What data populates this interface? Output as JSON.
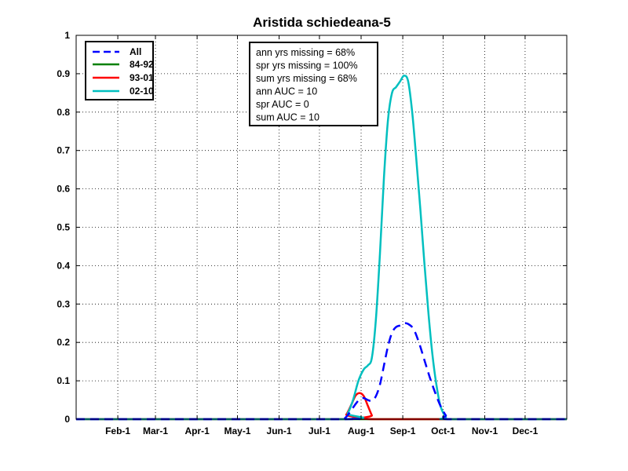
{
  "chart_data": {
    "type": "line",
    "title": "Aristida schiedeana-5",
    "xlabel": "",
    "ylabel": "",
    "xlim": [
      0,
      365
    ],
    "ylim": [
      0,
      1
    ],
    "grid": true,
    "legend_position": "top-left",
    "xticks": {
      "values": [
        31,
        59,
        90,
        120,
        151,
        181,
        212,
        243,
        273,
        304,
        334
      ],
      "labels": [
        "Feb-1",
        "Mar-1",
        "Apr-1",
        "May-1",
        "Jun-1",
        "Jul-1",
        "Aug-1",
        "Sep-1",
        "Oct-1",
        "Nov-1",
        "Dec-1"
      ]
    },
    "yticks": {
      "values": [
        0,
        0.1,
        0.2,
        0.3,
        0.4,
        0.5,
        0.6,
        0.7,
        0.8,
        0.9,
        1
      ],
      "labels": [
        "0",
        "0.1",
        "0.2",
        "0.3",
        "0.4",
        "0.5",
        "0.6",
        "0.7",
        "0.8",
        "0.9",
        "1"
      ]
    },
    "series": [
      {
        "name": "All",
        "color": "#0000ff",
        "style": "dashed",
        "points": [
          [
            0,
            0
          ],
          [
            195,
            0
          ],
          [
            200,
            0.003
          ],
          [
            204,
            0.02
          ],
          [
            208,
            0.04
          ],
          [
            211,
            0.052
          ],
          [
            214,
            0.055
          ],
          [
            217,
            0.05
          ],
          [
            220,
            0.048
          ],
          [
            223,
            0.06
          ],
          [
            226,
            0.09
          ],
          [
            229,
            0.14
          ],
          [
            232,
            0.19
          ],
          [
            235,
            0.225
          ],
          [
            238,
            0.24
          ],
          [
            242,
            0.245
          ],
          [
            244,
            0.25
          ],
          [
            247,
            0.248
          ],
          [
            251,
            0.235
          ],
          [
            255,
            0.2
          ],
          [
            259,
            0.155
          ],
          [
            263,
            0.11
          ],
          [
            267,
            0.07
          ],
          [
            271,
            0.035
          ],
          [
            275,
            0.01
          ],
          [
            278,
            0
          ],
          [
            365,
            0
          ]
        ]
      },
      {
        "name": "84-92",
        "color": "#008000",
        "style": "solid",
        "points": [
          [
            0,
            0
          ],
          [
            365,
            0
          ]
        ]
      },
      {
        "name": "93-01",
        "color": "#ff0000",
        "style": "solid",
        "points": [
          [
            0,
            0
          ],
          [
            197,
            0
          ],
          [
            201,
            0.012
          ],
          [
            205,
            0.04
          ],
          [
            208,
            0.062
          ],
          [
            211,
            0.068
          ],
          [
            214,
            0.06
          ],
          [
            217,
            0.035
          ],
          [
            220,
            0.01
          ],
          [
            222,
            0
          ],
          [
            365,
            0
          ]
        ]
      },
      {
        "name": "02-10",
        "color": "#00bfbf",
        "style": "solid",
        "points": [
          [
            0,
            0
          ],
          [
            198,
            0
          ],
          [
            202,
            0.015
          ],
          [
            206,
            0.05
          ],
          [
            210,
            0.1
          ],
          [
            214,
            0.13
          ],
          [
            217,
            0.14
          ],
          [
            220,
            0.16
          ],
          [
            223,
            0.26
          ],
          [
            226,
            0.43
          ],
          [
            229,
            0.63
          ],
          [
            232,
            0.78
          ],
          [
            235,
            0.85
          ],
          [
            238,
            0.865
          ],
          [
            241,
            0.88
          ],
          [
            244,
            0.895
          ],
          [
            247,
            0.88
          ],
          [
            250,
            0.8
          ],
          [
            253,
            0.68
          ],
          [
            256,
            0.55
          ],
          [
            259,
            0.41
          ],
          [
            262,
            0.28
          ],
          [
            265,
            0.17
          ],
          [
            268,
            0.09
          ],
          [
            271,
            0.035
          ],
          [
            275,
            0.005
          ],
          [
            278,
            0
          ],
          [
            365,
            0
          ]
        ]
      }
    ],
    "annotations": [
      "ann yrs missing = 68%",
      "spr yrs missing = 100%",
      "sum yrs missing = 68%",
      "ann AUC = 10",
      "spr AUC = 0",
      "sum AUC = 10"
    ]
  }
}
